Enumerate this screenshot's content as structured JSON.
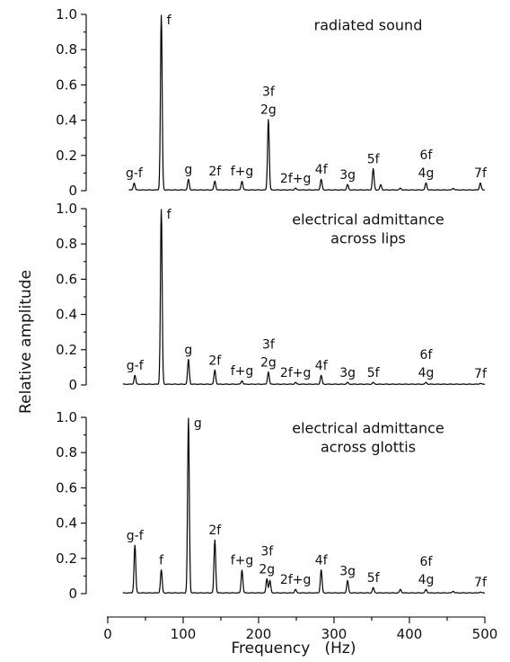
{
  "chart_data": {
    "type": "line",
    "xlabel": "Frequency   (Hz)",
    "ylabel": "Relative amplitude",
    "xlim": [
      0,
      500
    ],
    "ylim": [
      0,
      1.0
    ],
    "x_ticks": [
      "0",
      "100",
      "200",
      "300",
      "400",
      "500"
    ],
    "y_ticks": [
      "0",
      "0.2",
      "0.4",
      "0.6",
      "0.8",
      "1.0"
    ],
    "noise_floor": 0.005,
    "panels": [
      {
        "title_lines": [
          "radiated sound"
        ],
        "low_cut": 28,
        "peaks": [
          {
            "x": 35,
            "y": 0.04,
            "label": [
              "g-f"
            ]
          },
          {
            "x": 71,
            "y": 0.99,
            "label": [
              "f"
            ]
          },
          {
            "x": 107,
            "y": 0.06,
            "label": [
              "g"
            ]
          },
          {
            "x": 142,
            "y": 0.05,
            "label": [
              "2f"
            ]
          },
          {
            "x": 178,
            "y": 0.05,
            "label": [
              "f+g"
            ]
          },
          {
            "x": 213,
            "y": 0.4,
            "label": [
              "3f",
              "2g"
            ]
          },
          {
            "x": 249,
            "y": 0.01,
            "label": [
              "2f+g"
            ]
          },
          {
            "x": 283,
            "y": 0.06,
            "label": [
              "4f"
            ]
          },
          {
            "x": 318,
            "y": 0.03,
            "label": [
              "3g"
            ]
          },
          {
            "x": 352,
            "y": 0.12,
            "label": [
              "5f"
            ]
          },
          {
            "x": 362,
            "y": 0.03,
            "label": []
          },
          {
            "x": 388,
            "y": 0.01,
            "label": []
          },
          {
            "x": 422,
            "y": 0.04,
            "label": [
              "6f",
              "4g"
            ]
          },
          {
            "x": 458,
            "y": 0.01,
            "label": []
          },
          {
            "x": 494,
            "y": 0.04,
            "label": [
              "7f"
            ]
          }
        ]
      },
      {
        "title_lines": [
          "electrical admittance",
          "across lips"
        ],
        "low_cut": 20,
        "peaks": [
          {
            "x": 36,
            "y": 0.05,
            "label": [
              "g-f"
            ]
          },
          {
            "x": 71,
            "y": 0.99,
            "label": [
              "f"
            ]
          },
          {
            "x": 107,
            "y": 0.14,
            "label": [
              "g"
            ]
          },
          {
            "x": 142,
            "y": 0.08,
            "label": [
              "2f"
            ]
          },
          {
            "x": 178,
            "y": 0.02,
            "label": [
              "f+g"
            ]
          },
          {
            "x": 213,
            "y": 0.07,
            "label": [
              "3f",
              "2g"
            ]
          },
          {
            "x": 249,
            "y": 0.01,
            "label": [
              "2f+g"
            ]
          },
          {
            "x": 283,
            "y": 0.05,
            "label": [
              "4f"
            ]
          },
          {
            "x": 318,
            "y": 0.01,
            "label": [
              "3g"
            ]
          },
          {
            "x": 352,
            "y": 0.01,
            "label": [
              "5f"
            ]
          },
          {
            "x": 422,
            "y": 0.01,
            "label": [
              "6f",
              "4g"
            ]
          },
          {
            "x": 494,
            "y": 0.005,
            "label": [
              "7f"
            ]
          }
        ]
      },
      {
        "title_lines": [
          "electrical admittance",
          "across glottis"
        ],
        "low_cut": 20,
        "peaks": [
          {
            "x": 36,
            "y": 0.27,
            "label": [
              "g-f"
            ]
          },
          {
            "x": 71,
            "y": 0.13,
            "label": [
              "f"
            ]
          },
          {
            "x": 107,
            "y": 0.99,
            "label": [
              "g"
            ]
          },
          {
            "x": 142,
            "y": 0.3,
            "label": [
              "2f"
            ]
          },
          {
            "x": 178,
            "y": 0.13,
            "label": [
              "f+g"
            ]
          },
          {
            "x": 211,
            "y": 0.08,
            "label": [
              "3f",
              "2g"
            ]
          },
          {
            "x": 215,
            "y": 0.07,
            "label": []
          },
          {
            "x": 249,
            "y": 0.02,
            "label": [
              "2f+g"
            ]
          },
          {
            "x": 283,
            "y": 0.13,
            "label": [
              "4f"
            ]
          },
          {
            "x": 318,
            "y": 0.07,
            "label": [
              "3g"
            ]
          },
          {
            "x": 352,
            "y": 0.03,
            "label": [
              "5f"
            ]
          },
          {
            "x": 388,
            "y": 0.02,
            "label": []
          },
          {
            "x": 422,
            "y": 0.02,
            "label": [
              "6f",
              "4g"
            ]
          },
          {
            "x": 458,
            "y": 0.01,
            "label": []
          },
          {
            "x": 494,
            "y": 0.005,
            "label": [
              "7f"
            ]
          }
        ]
      }
    ]
  }
}
